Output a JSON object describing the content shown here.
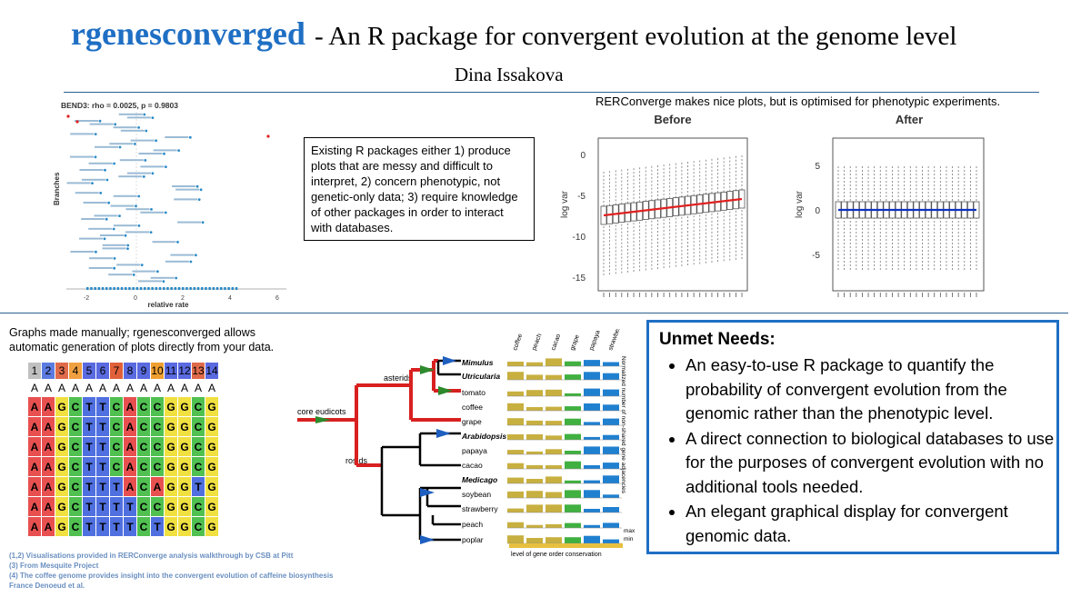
{
  "header": {
    "package_name": "rgenesconverged",
    "subtitle": "- An R package for convergent evolution at the genome level",
    "author": "Dina Issakova"
  },
  "scatter_plot": {
    "title": "BEND3: rho = 0.0025, p = 0.9803",
    "ylabel": "Branches",
    "xlabel": "relative rate",
    "xticks": [
      "-2",
      "0",
      "2",
      "4",
      "6"
    ]
  },
  "problem_box": {
    "text": "Existing R packages either 1) produce plots that are messy and difficult to interpret, 2) concern phenotypic, not genetic-only data; 3) require knowledge of other packages in order to interact with databases."
  },
  "rer_plots": {
    "caption": "RERConverge makes nice plots, but is optimised for phenotypic experiments.",
    "before": {
      "title": "Before",
      "ylabel": "log var",
      "yticks": [
        "0",
        "-5",
        "-10",
        "-15"
      ]
    },
    "after": {
      "title": "After",
      "ylabel": "log var",
      "yticks": [
        "5",
        "0",
        "-5"
      ]
    }
  },
  "manual_note": "Graphs made manually; rgenesconverged allows automatic generation of plots directly from your data.",
  "alignment": {
    "columns": [
      "1",
      "2",
      "3",
      "4",
      "5",
      "6",
      "7",
      "8",
      "9",
      "10",
      "11",
      "12",
      "13",
      "14"
    ],
    "header_colors": [
      "#c0c0c0",
      "#5b7be0",
      "#e06b4a",
      "#f0a040",
      "#5a6ae0",
      "#5a6ae0",
      "#e0603a",
      "#5a6ae0",
      "#5a6ae0",
      "#f0a030",
      "#5a6ae0",
      "#5a6ae0",
      "#e06b4a",
      "#5a6ae0"
    ],
    "ref_row": [
      "A",
      "A",
      "A",
      "A",
      "A",
      "A",
      "A",
      "A",
      "A",
      "A",
      "A",
      "A",
      "A",
      "A"
    ],
    "rows": [
      [
        "A",
        "A",
        "G",
        "C",
        "T",
        "T",
        "C",
        "A",
        "C",
        "C",
        "G",
        "G",
        "C",
        "G"
      ],
      [
        "A",
        "A",
        "G",
        "C",
        "T",
        "T",
        "C",
        "A",
        "C",
        "C",
        "G",
        "G",
        "C",
        "G"
      ],
      [
        "A",
        "A",
        "G",
        "C",
        "T",
        "T",
        "C",
        "A",
        "C",
        "C",
        "G",
        "G",
        "C",
        "G"
      ],
      [
        "A",
        "A",
        "G",
        "C",
        "T",
        "T",
        "C",
        "A",
        "C",
        "C",
        "G",
        "G",
        "C",
        "G"
      ],
      [
        "A",
        "A",
        "G",
        "C",
        "T",
        "T",
        "T",
        "A",
        "C",
        "A",
        "G",
        "G",
        "T",
        "G"
      ],
      [
        "A",
        "A",
        "G",
        "C",
        "T",
        "T",
        "T",
        "T",
        "C",
        "C",
        "G",
        "G",
        "C",
        "G"
      ],
      [
        "A",
        "A",
        "G",
        "C",
        "T",
        "T",
        "T",
        "T",
        "C",
        "T",
        "G",
        "G",
        "C",
        "G"
      ]
    ],
    "base_colors": {
      "A": "#e85050",
      "G": "#f0e040",
      "C": "#50c050",
      "T": "#5070e0"
    }
  },
  "tree": {
    "root_label": "core eudicots",
    "clade_labels": [
      "asterids",
      "rosids"
    ],
    "taxa": [
      "Mimulus",
      "Utricularia",
      "tomato",
      "coffee",
      "grape",
      "Arabidopsis",
      "papaya",
      "cacao",
      "Medicago",
      "soybean",
      "strawberry",
      "peach",
      "poplar"
    ],
    "italic_taxa": [
      "Mimulus",
      "Utricularia",
      "Arabidopsis",
      "Medicago"
    ],
    "column_labels": [
      "coffee",
      "peach",
      "cacao",
      "grape",
      "papaya",
      "strawberry"
    ],
    "side_label": "Normalized number of non-shared gene adjacencies",
    "legend_max": "max",
    "legend_min": "min",
    "bottom_label": "level of gene order conservation"
  },
  "unmet_needs": {
    "heading": "Unmet Needs:",
    "items": [
      "An easy-to-use R package to quantify the probability of convergent evolution from the genomic rather than the phenotypic level.",
      "A direct connection to biological databases to use for the purposes of convergent evolution with no additional tools needed.",
      "An elegant graphical display for convergent genomic data."
    ]
  },
  "references": [
    "(1,2) Visualisations provided in RERConverge analysis walkthrough by CSB at Pitt",
    "(3) From Mesquite Project",
    "(4) The coffee genome provides insight into the convergent evolution of caffeine biosynthesis",
    "France Denoeud et al."
  ],
  "colors": {
    "accent": "#1f6fc4",
    "divider": "#2b5f8f"
  }
}
